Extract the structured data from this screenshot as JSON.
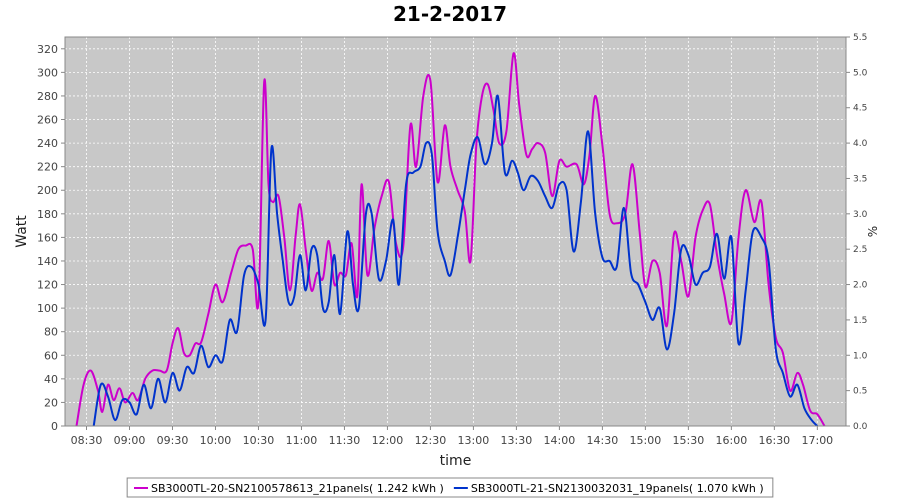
{
  "chart_data": {
    "type": "line",
    "title": "21-2-2017",
    "xlabel": "time",
    "ylabel": "Watt",
    "y2label": "%",
    "ylim": [
      0,
      330
    ],
    "y2lim": [
      0,
      5.5
    ],
    "x_range": [
      "08:15",
      "17:20"
    ],
    "x_ticks": [
      "08:30",
      "09:00",
      "09:30",
      "10:00",
      "10:30",
      "11:00",
      "11:30",
      "12:00",
      "12:30",
      "13:00",
      "13:30",
      "14:00",
      "14:30",
      "15:00",
      "15:30",
      "16:00",
      "16:30",
      "17:00"
    ],
    "y_ticks": [
      0,
      20,
      40,
      60,
      80,
      100,
      120,
      140,
      160,
      180,
      200,
      220,
      240,
      260,
      280,
      300,
      320
    ],
    "y2_ticks": [
      "0.0",
      "0.5",
      "1.0",
      "1.5",
      "2.0",
      "2.5",
      "3.0",
      "3.5",
      "4.0",
      "4.5",
      "5.0",
      "5.5"
    ],
    "grid": true,
    "legend_position": "bottom",
    "background": "#c8c8c8",
    "series": [
      {
        "name": "SB3000TL-20-SN2100578613_21panels( 1.242 kWh )",
        "color": "#cc00cc",
        "points": [
          [
            "08:23",
            0
          ],
          [
            "08:28",
            35
          ],
          [
            "08:33",
            47
          ],
          [
            "08:38",
            30
          ],
          [
            "08:41",
            12
          ],
          [
            "08:45",
            35
          ],
          [
            "08:49",
            22
          ],
          [
            "08:53",
            32
          ],
          [
            "08:57",
            20
          ],
          [
            "09:02",
            28
          ],
          [
            "09:06",
            22
          ],
          [
            "09:11",
            40
          ],
          [
            "09:16",
            47
          ],
          [
            "09:21",
            47
          ],
          [
            "09:26",
            47
          ],
          [
            "09:30",
            70
          ],
          [
            "09:34",
            83
          ],
          [
            "09:38",
            62
          ],
          [
            "09:42",
            60
          ],
          [
            "09:46",
            70
          ],
          [
            "09:50",
            71
          ],
          [
            "09:55",
            95
          ],
          [
            "10:00",
            120
          ],
          [
            "10:05",
            105
          ],
          [
            "10:11",
            130
          ],
          [
            "10:16",
            150
          ],
          [
            "10:21",
            153
          ],
          [
            "10:26",
            150
          ],
          [
            "10:30",
            105
          ],
          [
            "10:34",
            292
          ],
          [
            "10:37",
            205
          ],
          [
            "10:40",
            190
          ],
          [
            "10:44",
            195
          ],
          [
            "10:48",
            160
          ],
          [
            "10:52",
            115
          ],
          [
            "10:56",
            162
          ],
          [
            "10:59",
            188
          ],
          [
            "11:03",
            150
          ],
          [
            "11:07",
            115
          ],
          [
            "11:11",
            130
          ],
          [
            "11:15",
            125
          ],
          [
            "11:19",
            157
          ],
          [
            "11:23",
            120
          ],
          [
            "11:27",
            130
          ],
          [
            "11:31",
            128
          ],
          [
            "11:35",
            155
          ],
          [
            "11:39",
            110
          ],
          [
            "11:42",
            205
          ],
          [
            "11:46",
            128
          ],
          [
            "11:51",
            168
          ],
          [
            "11:56",
            195
          ],
          [
            "12:01",
            207
          ],
          [
            "12:06",
            155
          ],
          [
            "12:11",
            152
          ],
          [
            "12:16",
            255
          ],
          [
            "12:20",
            220
          ],
          [
            "12:25",
            280
          ],
          [
            "12:30",
            293
          ],
          [
            "12:35",
            207
          ],
          [
            "12:40",
            255
          ],
          [
            "12:44",
            220
          ],
          [
            "12:49",
            200
          ],
          [
            "12:54",
            182
          ],
          [
            "12:58",
            140
          ],
          [
            "13:02",
            238
          ],
          [
            "13:06",
            280
          ],
          [
            "13:10",
            290
          ],
          [
            "13:14",
            268
          ],
          [
            "13:18",
            240
          ],
          [
            "13:23",
            250
          ],
          [
            "13:28",
            316
          ],
          [
            "13:32",
            272
          ],
          [
            "13:37",
            230
          ],
          [
            "13:41",
            235
          ],
          [
            "13:45",
            240
          ],
          [
            "13:50",
            232
          ],
          [
            "13:55",
            195
          ],
          [
            "14:00",
            225
          ],
          [
            "14:05",
            220
          ],
          [
            "14:12",
            222
          ],
          [
            "14:17",
            205
          ],
          [
            "14:21",
            230
          ],
          [
            "14:25",
            280
          ],
          [
            "14:30",
            238
          ],
          [
            "14:35",
            180
          ],
          [
            "14:40",
            172
          ],
          [
            "14:46",
            180
          ],
          [
            "14:51",
            222
          ],
          [
            "14:56",
            165
          ],
          [
            "15:00",
            118
          ],
          [
            "15:05",
            140
          ],
          [
            "15:10",
            130
          ],
          [
            "15:15",
            85
          ],
          [
            "15:20",
            163
          ],
          [
            "15:25",
            140
          ],
          [
            "15:30",
            110
          ],
          [
            "15:35",
            160
          ],
          [
            "15:40",
            183
          ],
          [
            "15:45",
            188
          ],
          [
            "15:50",
            145
          ],
          [
            "15:55",
            112
          ],
          [
            "16:00",
            88
          ],
          [
            "16:05",
            160
          ],
          [
            "16:10",
            200
          ],
          [
            "16:16",
            173
          ],
          [
            "16:21",
            190
          ],
          [
            "16:26",
            120
          ],
          [
            "16:31",
            75
          ],
          [
            "16:36",
            62
          ],
          [
            "16:41",
            30
          ],
          [
            "16:46",
            45
          ],
          [
            "16:50",
            35
          ],
          [
            "16:55",
            13
          ],
          [
            "17:00",
            10
          ],
          [
            "17:05",
            0
          ]
        ]
      },
      {
        "name": "SB3000TL-21-SN2130032031_19panels( 1.070 kWh )",
        "color": "#0033cc",
        "points": [
          [
            "08:35",
            0
          ],
          [
            "08:40",
            35
          ],
          [
            "08:45",
            25
          ],
          [
            "08:50",
            5
          ],
          [
            "08:55",
            22
          ],
          [
            "09:00",
            20
          ],
          [
            "09:05",
            10
          ],
          [
            "09:10",
            35
          ],
          [
            "09:15",
            15
          ],
          [
            "09:20",
            40
          ],
          [
            "09:25",
            20
          ],
          [
            "09:30",
            45
          ],
          [
            "09:35",
            30
          ],
          [
            "09:40",
            50
          ],
          [
            "09:45",
            45
          ],
          [
            "09:50",
            68
          ],
          [
            "09:55",
            50
          ],
          [
            "10:00",
            60
          ],
          [
            "10:05",
            55
          ],
          [
            "10:10",
            90
          ],
          [
            "10:15",
            80
          ],
          [
            "10:20",
            128
          ],
          [
            "10:25",
            135
          ],
          [
            "10:30",
            120
          ],
          [
            "10:35",
            90
          ],
          [
            "10:39",
            235
          ],
          [
            "10:43",
            180
          ],
          [
            "10:47",
            140
          ],
          [
            "10:51",
            105
          ],
          [
            "10:55",
            110
          ],
          [
            "10:59",
            145
          ],
          [
            "11:03",
            115
          ],
          [
            "11:07",
            150
          ],
          [
            "11:11",
            145
          ],
          [
            "11:15",
            100
          ],
          [
            "11:19",
            105
          ],
          [
            "11:23",
            145
          ],
          [
            "11:27",
            95
          ],
          [
            "11:32",
            165
          ],
          [
            "11:36",
            120
          ],
          [
            "11:40",
            100
          ],
          [
            "11:45",
            180
          ],
          [
            "11:49",
            180
          ],
          [
            "11:54",
            125
          ],
          [
            "11:59",
            140
          ],
          [
            "12:04",
            175
          ],
          [
            "12:08",
            120
          ],
          [
            "12:13",
            205
          ],
          [
            "12:18",
            215
          ],
          [
            "12:23",
            220
          ],
          [
            "12:27",
            240
          ],
          [
            "12:31",
            230
          ],
          [
            "12:35",
            165
          ],
          [
            "12:40",
            140
          ],
          [
            "12:44",
            128
          ],
          [
            "12:49",
            160
          ],
          [
            "12:54",
            200
          ],
          [
            "12:58",
            230
          ],
          [
            "13:03",
            245
          ],
          [
            "13:08",
            222
          ],
          [
            "13:13",
            240
          ],
          [
            "13:17",
            280
          ],
          [
            "13:22",
            215
          ],
          [
            "13:27",
            225
          ],
          [
            "13:31",
            215
          ],
          [
            "13:35",
            200
          ],
          [
            "13:40",
            212
          ],
          [
            "13:45",
            208
          ],
          [
            "13:50",
            195
          ],
          [
            "13:55",
            185
          ],
          [
            "14:00",
            205
          ],
          [
            "14:05",
            200
          ],
          [
            "14:10",
            148
          ],
          [
            "14:15",
            190
          ],
          [
            "14:20",
            250
          ],
          [
            "14:25",
            180
          ],
          [
            "14:30",
            143
          ],
          [
            "14:35",
            140
          ],
          [
            "14:40",
            135
          ],
          [
            "14:45",
            185
          ],
          [
            "14:50",
            130
          ],
          [
            "14:55",
            120
          ],
          [
            "15:00",
            105
          ],
          [
            "15:05",
            90
          ],
          [
            "15:10",
            100
          ],
          [
            "15:15",
            65
          ],
          [
            "15:20",
            95
          ],
          [
            "15:25",
            150
          ],
          [
            "15:30",
            145
          ],
          [
            "15:35",
            120
          ],
          [
            "15:40",
            130
          ],
          [
            "15:45",
            135
          ],
          [
            "15:50",
            163
          ],
          [
            "15:55",
            125
          ],
          [
            "16:00",
            160
          ],
          [
            "16:05",
            70
          ],
          [
            "16:10",
            115
          ],
          [
            "16:15",
            165
          ],
          [
            "16:21",
            160
          ],
          [
            "16:26",
            140
          ],
          [
            "16:31",
            65
          ],
          [
            "16:36",
            45
          ],
          [
            "16:41",
            25
          ],
          [
            "16:46",
            35
          ],
          [
            "16:51",
            15
          ],
          [
            "16:56",
            5
          ],
          [
            "17:00",
            0
          ]
        ]
      }
    ]
  }
}
